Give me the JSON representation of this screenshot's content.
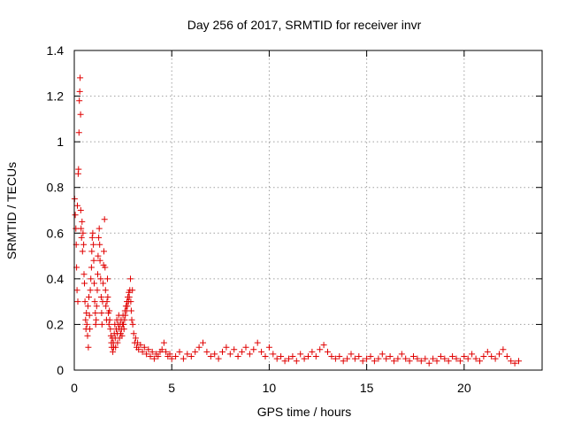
{
  "chart_data": {
    "type": "scatter",
    "title": "Day 256 of 2017, SRMTID for receiver invr",
    "xlabel": "GPS time / hours",
    "ylabel": "SRMTID / TECUs",
    "xlim": [
      0,
      24
    ],
    "ylim": [
      0,
      1.4
    ],
    "xticks": [
      0,
      5,
      10,
      15,
      20
    ],
    "xtick_labels": [
      "0",
      "5",
      "10",
      "15",
      "20"
    ],
    "yticks": [
      0,
      0.2,
      0.4,
      0.6,
      0.8,
      1,
      1.2,
      1.4
    ],
    "ytick_labels": [
      "0",
      "0.2",
      "0.4",
      "0.6",
      "0.8",
      "1",
      "1.2",
      "1.4"
    ],
    "grid": true,
    "marker": "+",
    "color": "#e00000",
    "series": [
      {
        "name": "SRMTID",
        "points": [
          [
            0.02,
            0.75
          ],
          [
            0.05,
            0.68
          ],
          [
            0.08,
            0.62
          ],
          [
            0.1,
            0.55
          ],
          [
            0.12,
            0.45
          ],
          [
            0.14,
            0.35
          ],
          [
            0.16,
            0.72
          ],
          [
            0.18,
            0.3
          ],
          [
            0.2,
            0.86
          ],
          [
            0.22,
            0.88
          ],
          [
            0.24,
            1.04
          ],
          [
            0.26,
            1.18
          ],
          [
            0.28,
            1.22
          ],
          [
            0.3,
            1.28
          ],
          [
            0.32,
            1.12
          ],
          [
            0.33,
            0.7
          ],
          [
            0.35,
            0.62
          ],
          [
            0.37,
            0.58
          ],
          [
            0.4,
            0.65
          ],
          [
            0.42,
            0.52
          ],
          [
            0.45,
            0.6
          ],
          [
            0.48,
            0.55
          ],
          [
            0.5,
            0.42
          ],
          [
            0.52,
            0.38
          ],
          [
            0.55,
            0.3
          ],
          [
            0.58,
            0.22
          ],
          [
            0.6,
            0.18
          ],
          [
            0.62,
            0.25
          ],
          [
            0.65,
            0.2
          ],
          [
            0.68,
            0.15
          ],
          [
            0.7,
            0.28
          ],
          [
            0.72,
            0.1
          ],
          [
            0.75,
            0.32
          ],
          [
            0.78,
            0.24
          ],
          [
            0.8,
            0.18
          ],
          [
            0.82,
            0.35
          ],
          [
            0.85,
            0.4
          ],
          [
            0.88,
            0.45
          ],
          [
            0.9,
            0.52
          ],
          [
            0.92,
            0.58
          ],
          [
            0.95,
            0.6
          ],
          [
            0.98,
            0.55
          ],
          [
            1.0,
            0.48
          ],
          [
            1.02,
            0.38
          ],
          [
            1.05,
            0.3
          ],
          [
            1.08,
            0.25
          ],
          [
            1.1,
            0.2
          ],
          [
            1.12,
            0.22
          ],
          [
            1.15,
            0.28
          ],
          [
            1.18,
            0.35
          ],
          [
            1.2,
            0.42
          ],
          [
            1.22,
            0.5
          ],
          [
            1.25,
            0.58
          ],
          [
            1.28,
            0.62
          ],
          [
            1.3,
            0.55
          ],
          [
            1.32,
            0.48
          ],
          [
            1.35,
            0.4
          ],
          [
            1.38,
            0.32
          ],
          [
            1.4,
            0.25
          ],
          [
            1.42,
            0.2
          ],
          [
            1.45,
            0.3
          ],
          [
            1.48,
            0.38
          ],
          [
            1.5,
            0.46
          ],
          [
            1.52,
            0.52
          ],
          [
            1.55,
            0.66
          ],
          [
            1.58,
            0.45
          ],
          [
            1.6,
            0.35
          ],
          [
            1.62,
            0.28
          ],
          [
            1.65,
            0.22
          ],
          [
            1.68,
            0.3
          ],
          [
            1.7,
            0.4
          ],
          [
            1.72,
            0.32
          ],
          [
            1.75,
            0.25
          ],
          [
            1.78,
            0.2
          ],
          [
            1.8,
            0.26
          ],
          [
            1.82,
            0.22
          ],
          [
            1.85,
            0.18
          ],
          [
            1.88,
            0.15
          ],
          [
            1.9,
            0.12
          ],
          [
            1.92,
            0.1
          ],
          [
            1.95,
            0.14
          ],
          [
            1.98,
            0.08
          ],
          [
            2.0,
            0.12
          ],
          [
            2.02,
            0.1
          ],
          [
            2.05,
            0.16
          ],
          [
            2.08,
            0.2
          ],
          [
            2.1,
            0.14
          ],
          [
            2.12,
            0.1
          ],
          [
            2.15,
            0.18
          ],
          [
            2.18,
            0.22
          ],
          [
            2.2,
            0.16
          ],
          [
            2.22,
            0.12
          ],
          [
            2.25,
            0.2
          ],
          [
            2.28,
            0.24
          ],
          [
            2.3,
            0.18
          ],
          [
            2.32,
            0.14
          ],
          [
            2.35,
            0.2
          ],
          [
            2.38,
            0.16
          ],
          [
            2.4,
            0.22
          ],
          [
            2.42,
            0.18
          ],
          [
            2.45,
            0.15
          ],
          [
            2.48,
            0.2
          ],
          [
            2.5,
            0.24
          ],
          [
            2.52,
            0.2
          ],
          [
            2.55,
            0.18
          ],
          [
            2.58,
            0.22
          ],
          [
            2.6,
            0.26
          ],
          [
            2.62,
            0.24
          ],
          [
            2.65,
            0.28
          ],
          [
            2.68,
            0.26
          ],
          [
            2.7,
            0.3
          ],
          [
            2.72,
            0.28
          ],
          [
            2.75,
            0.32
          ],
          [
            2.78,
            0.3
          ],
          [
            2.8,
            0.34
          ],
          [
            2.82,
            0.32
          ],
          [
            2.85,
            0.35
          ],
          [
            2.88,
            0.4
          ],
          [
            2.9,
            0.3
          ],
          [
            2.92,
            0.26
          ],
          [
            2.95,
            0.22
          ],
          [
            2.98,
            0.35
          ],
          [
            3.0,
            0.2
          ],
          [
            3.05,
            0.16
          ],
          [
            3.1,
            0.12
          ],
          [
            3.15,
            0.14
          ],
          [
            3.2,
            0.1
          ],
          [
            3.25,
            0.12
          ],
          [
            3.3,
            0.09
          ],
          [
            3.4,
            0.11
          ],
          [
            3.5,
            0.08
          ],
          [
            3.6,
            0.1
          ],
          [
            3.7,
            0.07
          ],
          [
            3.8,
            0.09
          ],
          [
            3.9,
            0.06
          ],
          [
            4.0,
            0.08
          ],
          [
            4.1,
            0.05
          ],
          [
            4.2,
            0.07
          ],
          [
            4.3,
            0.06
          ],
          [
            4.4,
            0.08
          ],
          [
            4.5,
            0.09
          ],
          [
            4.6,
            0.12
          ],
          [
            4.7,
            0.08
          ],
          [
            4.8,
            0.06
          ],
          [
            4.9,
            0.07
          ],
          [
            5.0,
            0.05
          ],
          [
            5.2,
            0.06
          ],
          [
            5.4,
            0.08
          ],
          [
            5.6,
            0.05
          ],
          [
            5.8,
            0.07
          ],
          [
            6.0,
            0.06
          ],
          [
            6.2,
            0.08
          ],
          [
            6.4,
            0.1
          ],
          [
            6.6,
            0.12
          ],
          [
            6.8,
            0.08
          ],
          [
            7.0,
            0.06
          ],
          [
            7.2,
            0.07
          ],
          [
            7.4,
            0.05
          ],
          [
            7.6,
            0.08
          ],
          [
            7.8,
            0.1
          ],
          [
            8.0,
            0.07
          ],
          [
            8.2,
            0.09
          ],
          [
            8.4,
            0.06
          ],
          [
            8.6,
            0.08
          ],
          [
            8.8,
            0.1
          ],
          [
            9.0,
            0.07
          ],
          [
            9.2,
            0.09
          ],
          [
            9.4,
            0.12
          ],
          [
            9.6,
            0.08
          ],
          [
            9.8,
            0.06
          ],
          [
            10.0,
            0.1
          ],
          [
            10.2,
            0.07
          ],
          [
            10.4,
            0.05
          ],
          [
            10.6,
            0.06
          ],
          [
            10.8,
            0.04
          ],
          [
            11.0,
            0.05
          ],
          [
            11.2,
            0.06
          ],
          [
            11.4,
            0.04
          ],
          [
            11.6,
            0.07
          ],
          [
            11.8,
            0.05
          ],
          [
            12.0,
            0.06
          ],
          [
            12.2,
            0.08
          ],
          [
            12.4,
            0.06
          ],
          [
            12.6,
            0.09
          ],
          [
            12.8,
            0.11
          ],
          [
            13.0,
            0.08
          ],
          [
            13.2,
            0.06
          ],
          [
            13.4,
            0.05
          ],
          [
            13.6,
            0.06
          ],
          [
            13.8,
            0.04
          ],
          [
            14.0,
            0.05
          ],
          [
            14.2,
            0.07
          ],
          [
            14.4,
            0.05
          ],
          [
            14.6,
            0.06
          ],
          [
            14.8,
            0.04
          ],
          [
            15.0,
            0.05
          ],
          [
            15.2,
            0.06
          ],
          [
            15.4,
            0.04
          ],
          [
            15.6,
            0.05
          ],
          [
            15.8,
            0.07
          ],
          [
            16.0,
            0.05
          ],
          [
            16.2,
            0.06
          ],
          [
            16.4,
            0.04
          ],
          [
            16.6,
            0.05
          ],
          [
            16.8,
            0.07
          ],
          [
            17.0,
            0.05
          ],
          [
            17.2,
            0.04
          ],
          [
            17.4,
            0.06
          ],
          [
            17.6,
            0.05
          ],
          [
            17.8,
            0.04
          ],
          [
            18.0,
            0.05
          ],
          [
            18.2,
            0.03
          ],
          [
            18.4,
            0.05
          ],
          [
            18.6,
            0.04
          ],
          [
            18.8,
            0.06
          ],
          [
            19.0,
            0.05
          ],
          [
            19.2,
            0.04
          ],
          [
            19.4,
            0.06
          ],
          [
            19.6,
            0.05
          ],
          [
            19.8,
            0.04
          ],
          [
            20.0,
            0.06
          ],
          [
            20.2,
            0.05
          ],
          [
            20.4,
            0.07
          ],
          [
            20.6,
            0.05
          ],
          [
            20.8,
            0.04
          ],
          [
            21.0,
            0.06
          ],
          [
            21.2,
            0.08
          ],
          [
            21.4,
            0.06
          ],
          [
            21.6,
            0.05
          ],
          [
            21.8,
            0.07
          ],
          [
            22.0,
            0.09
          ],
          [
            22.2,
            0.06
          ],
          [
            22.4,
            0.04
          ],
          [
            22.6,
            0.03
          ],
          [
            22.8,
            0.04
          ]
        ]
      }
    ]
  }
}
